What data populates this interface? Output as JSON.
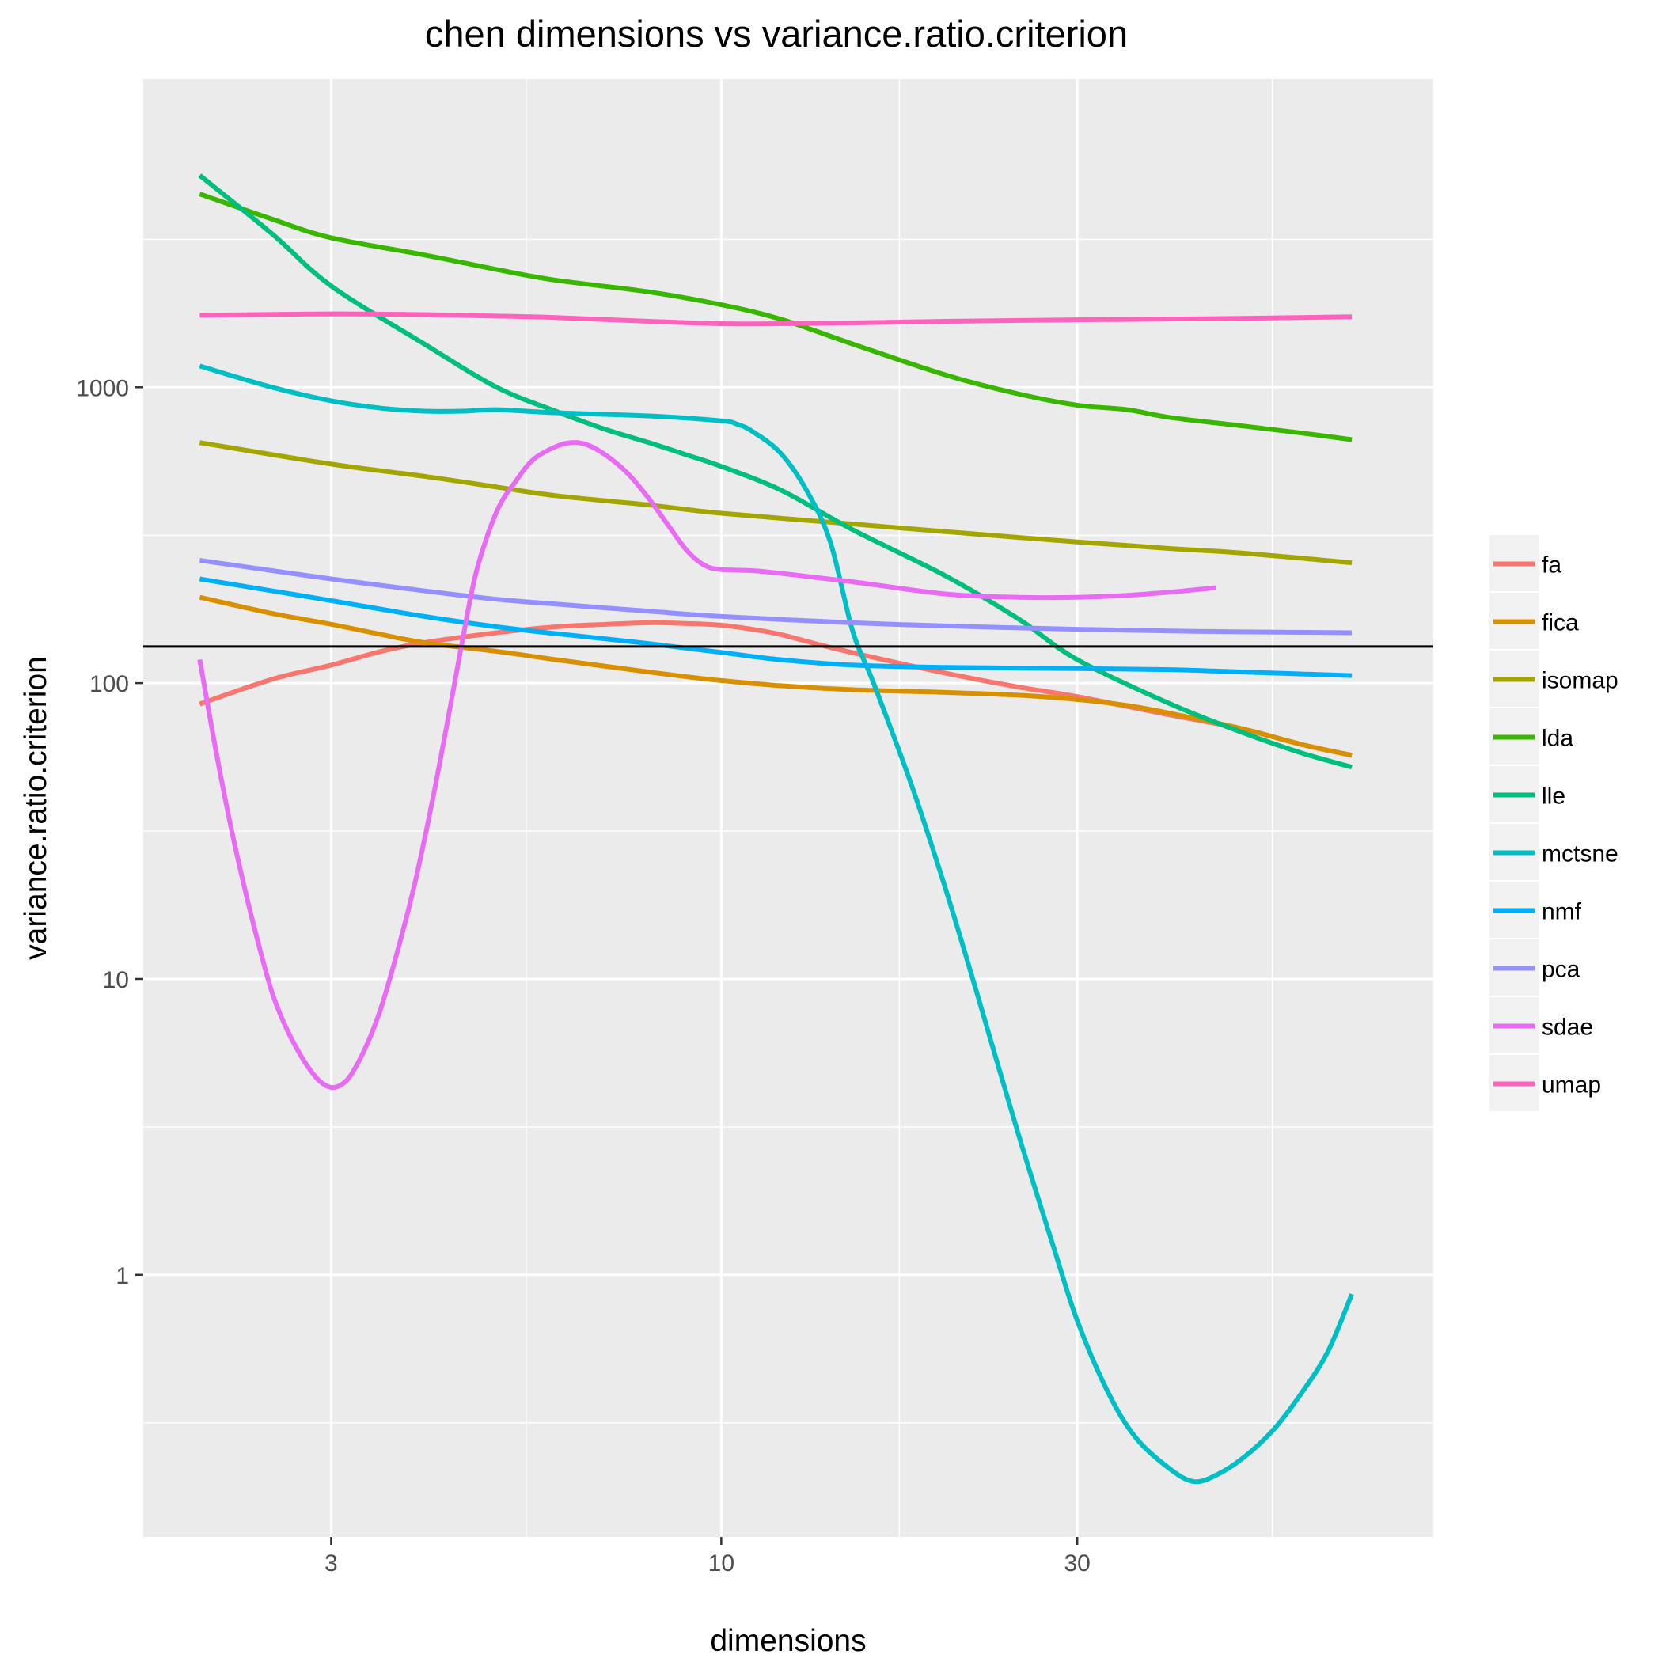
{
  "chart_data": {
    "type": "line",
    "title": "chen dimensions vs variance.ratio.criterion",
    "xlabel": "dimensions",
    "ylabel": "variance.ratio.criterion",
    "x_scale": "log10",
    "y_scale": "log10",
    "xlim": [
      1.68,
      90
    ],
    "ylim": [
      0.13,
      11000
    ],
    "x_ticks": [
      3,
      10,
      30
    ],
    "x_minor_ticks": [
      5.477,
      17.32,
      54.77
    ],
    "y_ticks": [
      1,
      10,
      100,
      1000
    ],
    "y_minor_ticks": [
      0.316,
      3.16,
      31.6,
      316,
      3162
    ],
    "grid": true,
    "legend_position": "right",
    "reference_line": {
      "y": 133
    },
    "series": [
      {
        "name": "fa",
        "color": "#F8766D",
        "points": [
          [
            2,
            85
          ],
          [
            2.5,
            103
          ],
          [
            3,
            115
          ],
          [
            3.5,
            128
          ],
          [
            4,
            137
          ],
          [
            5,
            148
          ],
          [
            6,
            155
          ],
          [
            7,
            158
          ],
          [
            8,
            160
          ],
          [
            9,
            159
          ],
          [
            10,
            157
          ],
          [
            11,
            152
          ],
          [
            12,
            146
          ],
          [
            14,
            132
          ],
          [
            17,
            118
          ],
          [
            20,
            108
          ],
          [
            25,
            97
          ],
          [
            30,
            90
          ],
          [
            40,
            78
          ],
          [
            50,
            70
          ],
          [
            60,
            62
          ],
          [
            70,
            57
          ]
        ]
      },
      {
        "name": "fica",
        "color": "#D89000",
        "points": [
          [
            2,
            195
          ],
          [
            2.5,
            172
          ],
          [
            3,
            158
          ],
          [
            3.5,
            146
          ],
          [
            4,
            137
          ],
          [
            5,
            128
          ],
          [
            6,
            120
          ],
          [
            7,
            114
          ],
          [
            8,
            109
          ],
          [
            9,
            105
          ],
          [
            10,
            102
          ],
          [
            12,
            98
          ],
          [
            15,
            95
          ],
          [
            20,
            93
          ],
          [
            25,
            91
          ],
          [
            30,
            88
          ],
          [
            35,
            84
          ],
          [
            40,
            79
          ],
          [
            50,
            70
          ],
          [
            60,
            62
          ],
          [
            70,
            57
          ]
        ]
      },
      {
        "name": "isomap",
        "color": "#A3A500",
        "points": [
          [
            2,
            650
          ],
          [
            3,
            550
          ],
          [
            4,
            500
          ],
          [
            5,
            460
          ],
          [
            6,
            430
          ],
          [
            8,
            400
          ],
          [
            10,
            375
          ],
          [
            15,
            345
          ],
          [
            20,
            325
          ],
          [
            30,
            300
          ],
          [
            40,
            285
          ],
          [
            50,
            275
          ],
          [
            70,
            255
          ]
        ]
      },
      {
        "name": "lda",
        "color": "#39B600",
        "points": [
          [
            2,
            4500
          ],
          [
            2.5,
            3700
          ],
          [
            3,
            3200
          ],
          [
            4,
            2800
          ],
          [
            5,
            2500
          ],
          [
            6,
            2300
          ],
          [
            8,
            2100
          ],
          [
            10,
            1900
          ],
          [
            12,
            1700
          ],
          [
            15,
            1400
          ],
          [
            20,
            1100
          ],
          [
            25,
            950
          ],
          [
            30,
            870
          ],
          [
            35,
            840
          ],
          [
            40,
            790
          ],
          [
            50,
            740
          ],
          [
            60,
            700
          ],
          [
            70,
            665
          ]
        ]
      },
      {
        "name": "lle",
        "color": "#00BF7D",
        "points": [
          [
            2,
            5200
          ],
          [
            2.5,
            3300
          ],
          [
            3,
            2200
          ],
          [
            4,
            1400
          ],
          [
            5,
            1000
          ],
          [
            6,
            830
          ],
          [
            7,
            720
          ],
          [
            8,
            650
          ],
          [
            9,
            590
          ],
          [
            10,
            540
          ],
          [
            12,
            450
          ],
          [
            15,
            330
          ],
          [
            20,
            230
          ],
          [
            25,
            165
          ],
          [
            30,
            120
          ],
          [
            40,
            85
          ],
          [
            50,
            68
          ],
          [
            60,
            58
          ],
          [
            70,
            52
          ]
        ]
      },
      {
        "name": "mctsne",
        "color": "#00BFC4",
        "points": [
          [
            2,
            1180
          ],
          [
            2.5,
            1000
          ],
          [
            3,
            900
          ],
          [
            3.5,
            850
          ],
          [
            4,
            830
          ],
          [
            4.5,
            830
          ],
          [
            5,
            840
          ],
          [
            6,
            820
          ],
          [
            8,
            800
          ],
          [
            10,
            770
          ],
          [
            10.5,
            750
          ],
          [
            11,
            710
          ],
          [
            12,
            600
          ],
          [
            13,
            450
          ],
          [
            14,
            300
          ],
          [
            15,
            150
          ],
          [
            16,
            100
          ],
          [
            18,
            45
          ],
          [
            20,
            20
          ],
          [
            22,
            9
          ],
          [
            25,
            3
          ],
          [
            28,
            1.2
          ],
          [
            30,
            0.7
          ],
          [
            33,
            0.4
          ],
          [
            36,
            0.28
          ],
          [
            40,
            0.22
          ],
          [
            43,
            0.2
          ],
          [
            46,
            0.21
          ],
          [
            50,
            0.24
          ],
          [
            55,
            0.3
          ],
          [
            60,
            0.4
          ],
          [
            65,
            0.55
          ],
          [
            70,
            0.86
          ]
        ]
      },
      {
        "name": "nmf",
        "color": "#00B0F6",
        "points": [
          [
            2,
            225
          ],
          [
            2.5,
            205
          ],
          [
            3,
            190
          ],
          [
            4,
            168
          ],
          [
            5,
            155
          ],
          [
            6,
            147
          ],
          [
            8,
            136
          ],
          [
            10,
            127
          ],
          [
            12,
            120
          ],
          [
            15,
            115
          ],
          [
            20,
            113
          ],
          [
            30,
            112
          ],
          [
            40,
            111
          ],
          [
            50,
            109
          ],
          [
            70,
            106
          ]
        ]
      },
      {
        "name": "pca",
        "color": "#9590FF",
        "points": [
          [
            2,
            260
          ],
          [
            2.5,
            240
          ],
          [
            3,
            225
          ],
          [
            4,
            205
          ],
          [
            5,
            192
          ],
          [
            6,
            185
          ],
          [
            8,
            175
          ],
          [
            10,
            168
          ],
          [
            15,
            160
          ],
          [
            20,
            156
          ],
          [
            30,
            152
          ],
          [
            40,
            150
          ],
          [
            50,
            149
          ],
          [
            70,
            148
          ]
        ]
      },
      {
        "name": "sdae",
        "color": "#E76BF3",
        "points": [
          [
            2,
            120
          ],
          [
            2.1,
            60
          ],
          [
            2.2,
            33
          ],
          [
            2.3,
            20
          ],
          [
            2.4,
            13
          ],
          [
            2.5,
            9
          ],
          [
            2.6,
            7
          ],
          [
            2.7,
            5.8
          ],
          [
            2.8,
            5
          ],
          [
            2.9,
            4.5
          ],
          [
            3,
            4.3
          ],
          [
            3.1,
            4.4
          ],
          [
            3.2,
            4.8
          ],
          [
            3.35,
            6
          ],
          [
            3.5,
            8
          ],
          [
            3.7,
            13
          ],
          [
            3.9,
            22
          ],
          [
            4.1,
            40
          ],
          [
            4.3,
            75
          ],
          [
            4.5,
            140
          ],
          [
            4.7,
            240
          ],
          [
            5,
            380
          ],
          [
            5.3,
            480
          ],
          [
            5.6,
            570
          ],
          [
            6,
            630
          ],
          [
            6.3,
            650
          ],
          [
            6.6,
            640
          ],
          [
            7,
            590
          ],
          [
            7.5,
            510
          ],
          [
            8,
            420
          ],
          [
            8.5,
            340
          ],
          [
            9,
            280
          ],
          [
            9.5,
            250
          ],
          [
            10,
            242
          ],
          [
            11,
            240
          ],
          [
            12,
            235
          ],
          [
            15,
            220
          ],
          [
            20,
            200
          ],
          [
            25,
            195
          ],
          [
            30,
            195
          ],
          [
            35,
            198
          ],
          [
            40,
            203
          ],
          [
            46,
            210
          ]
        ]
      },
      {
        "name": "umap",
        "color": "#FF62BC",
        "points": [
          [
            2,
            1750
          ],
          [
            3,
            1770
          ],
          [
            4,
            1760
          ],
          [
            5,
            1740
          ],
          [
            6,
            1720
          ],
          [
            8,
            1670
          ],
          [
            10,
            1640
          ],
          [
            12,
            1640
          ],
          [
            15,
            1650
          ],
          [
            20,
            1670
          ],
          [
            30,
            1690
          ],
          [
            40,
            1700
          ],
          [
            50,
            1710
          ],
          [
            70,
            1730
          ]
        ]
      }
    ]
  }
}
